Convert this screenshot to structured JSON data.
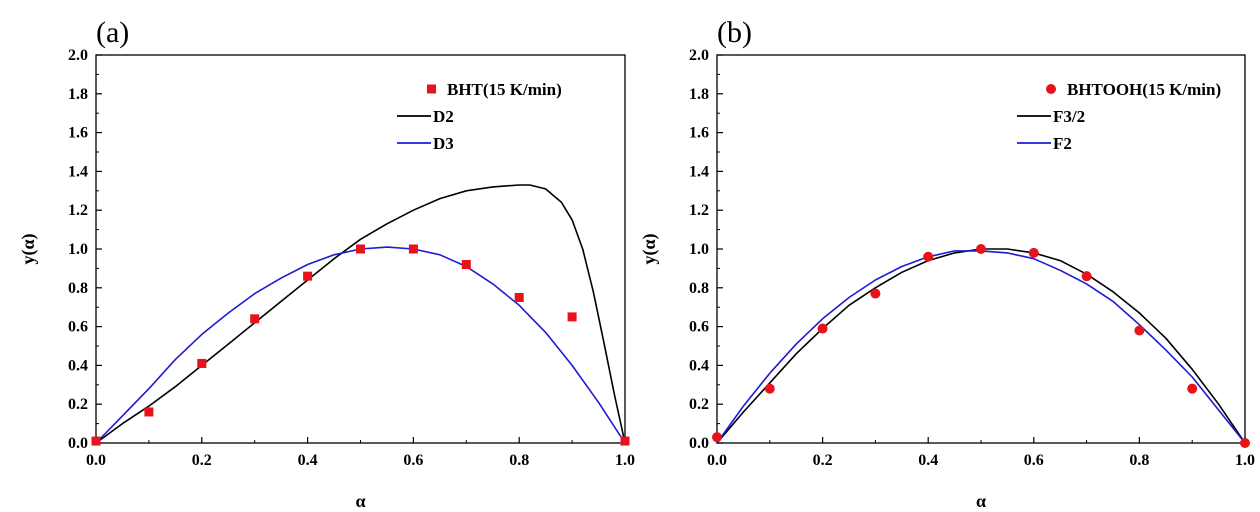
{
  "chart_data": [
    {
      "panel_label": "(a)",
      "type": "scatter",
      "xlabel": "α",
      "ylabel": "y(α)",
      "xlim": [
        0.0,
        1.0
      ],
      "ylim": [
        0.0,
        2.0
      ],
      "x_ticks": [
        "0.0",
        "0.2",
        "0.4",
        "0.6",
        "0.8",
        "1.0"
      ],
      "y_ticks": [
        "0.0",
        "0.2",
        "0.4",
        "0.6",
        "0.8",
        "1.0",
        "1.2",
        "1.4",
        "1.6",
        "1.8",
        "2.0"
      ],
      "legend_position": "top-right",
      "series": [
        {
          "name": "BHT(15 K/min)",
          "kind": "points",
          "marker": "square",
          "color": "#e8121a",
          "x": [
            0.0,
            0.1,
            0.2,
            0.3,
            0.4,
            0.5,
            0.6,
            0.7,
            0.8,
            0.9,
            1.0
          ],
          "y": [
            0.01,
            0.16,
            0.41,
            0.64,
            0.86,
            1.0,
            1.0,
            0.92,
            0.75,
            0.65,
            0.01
          ]
        },
        {
          "name": "D2",
          "kind": "line",
          "color": "#000000",
          "x": [
            0.0,
            0.05,
            0.1,
            0.15,
            0.2,
            0.25,
            0.3,
            0.35,
            0.4,
            0.45,
            0.5,
            0.55,
            0.6,
            0.65,
            0.7,
            0.75,
            0.8,
            0.82,
            0.85,
            0.88,
            0.9,
            0.92,
            0.94,
            0.96,
            0.98,
            1.0
          ],
          "y": [
            0.0,
            0.1,
            0.19,
            0.29,
            0.4,
            0.51,
            0.62,
            0.73,
            0.84,
            0.95,
            1.05,
            1.13,
            1.2,
            1.26,
            1.3,
            1.32,
            1.33,
            1.33,
            1.31,
            1.24,
            1.15,
            1.0,
            0.78,
            0.52,
            0.25,
            0.0
          ]
        },
        {
          "name": "D3",
          "kind": "line",
          "color": "#1b1bd6",
          "x": [
            0.0,
            0.05,
            0.1,
            0.15,
            0.2,
            0.25,
            0.3,
            0.35,
            0.4,
            0.45,
            0.5,
            0.55,
            0.6,
            0.65,
            0.7,
            0.75,
            0.8,
            0.85,
            0.9,
            0.95,
            1.0
          ],
          "y": [
            0.0,
            0.14,
            0.28,
            0.43,
            0.56,
            0.67,
            0.77,
            0.85,
            0.92,
            0.97,
            1.0,
            1.01,
            1.0,
            0.97,
            0.91,
            0.82,
            0.71,
            0.57,
            0.4,
            0.21,
            0.0
          ]
        }
      ]
    },
    {
      "panel_label": "(b)",
      "type": "scatter",
      "xlabel": "α",
      "ylabel": "y(α)",
      "xlim": [
        0.0,
        1.0
      ],
      "ylim": [
        0.0,
        2.0
      ],
      "x_ticks": [
        "0.0",
        "0.2",
        "0.4",
        "0.6",
        "0.8",
        "1.0"
      ],
      "y_ticks": [
        "0.0",
        "0.2",
        "0.4",
        "0.6",
        "0.8",
        "1.0",
        "1.2",
        "1.4",
        "1.6",
        "1.8",
        "2.0"
      ],
      "legend_position": "top-right",
      "series": [
        {
          "name": "BHTOOH(15 K/min)",
          "kind": "points",
          "marker": "circle",
          "color": "#e8121a",
          "x": [
            0.0,
            0.1,
            0.2,
            0.3,
            0.4,
            0.5,
            0.6,
            0.7,
            0.8,
            0.9,
            1.0
          ],
          "y": [
            0.03,
            0.28,
            0.59,
            0.77,
            0.96,
            1.0,
            0.98,
            0.86,
            0.58,
            0.28,
            0.0
          ]
        },
        {
          "name": "F3/2",
          "kind": "line",
          "color": "#000000",
          "x": [
            0.0,
            0.05,
            0.1,
            0.15,
            0.2,
            0.25,
            0.3,
            0.35,
            0.4,
            0.45,
            0.5,
            0.55,
            0.6,
            0.65,
            0.7,
            0.75,
            0.8,
            0.85,
            0.9,
            0.95,
            1.0
          ],
          "y": [
            0.0,
            0.16,
            0.31,
            0.46,
            0.59,
            0.71,
            0.8,
            0.88,
            0.94,
            0.98,
            1.0,
            1.0,
            0.98,
            0.94,
            0.87,
            0.78,
            0.67,
            0.54,
            0.38,
            0.2,
            0.0
          ]
        },
        {
          "name": "F2",
          "kind": "line",
          "color": "#1b1bd6",
          "x": [
            0.0,
            0.05,
            0.1,
            0.15,
            0.2,
            0.25,
            0.3,
            0.35,
            0.4,
            0.45,
            0.5,
            0.55,
            0.6,
            0.65,
            0.7,
            0.75,
            0.8,
            0.85,
            0.9,
            0.95,
            1.0
          ],
          "y": [
            0.0,
            0.19,
            0.36,
            0.51,
            0.64,
            0.75,
            0.84,
            0.91,
            0.96,
            0.99,
            0.99,
            0.98,
            0.95,
            0.89,
            0.82,
            0.73,
            0.61,
            0.48,
            0.34,
            0.17,
            0.0
          ]
        }
      ]
    }
  ]
}
